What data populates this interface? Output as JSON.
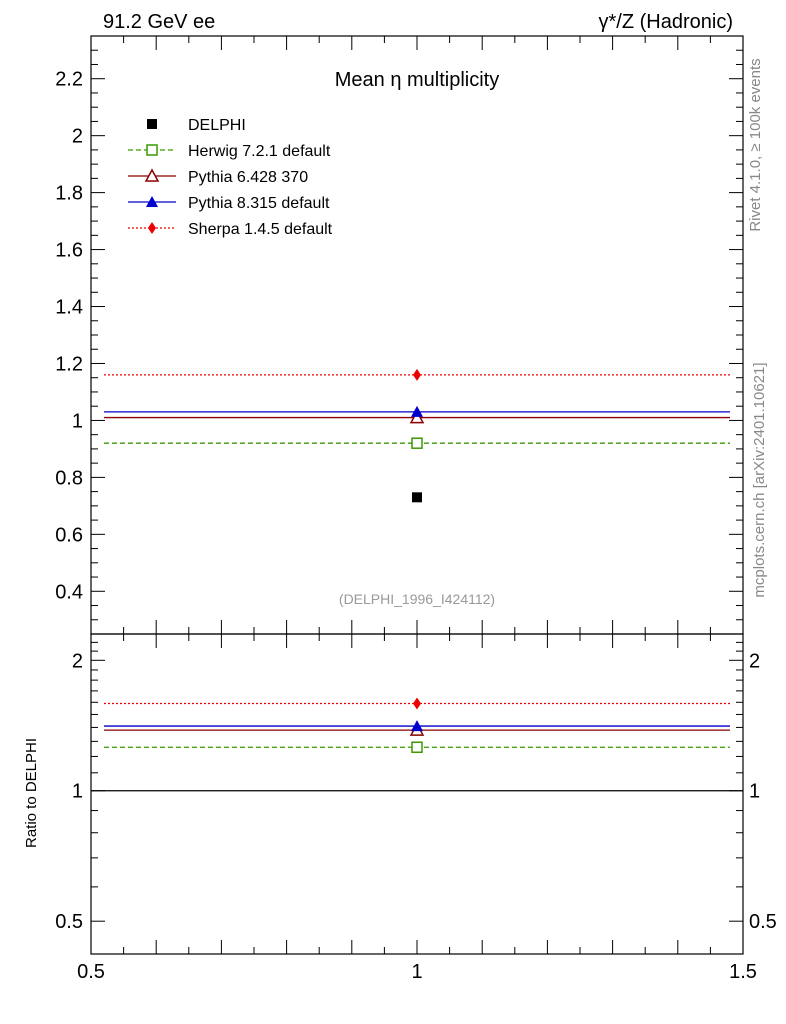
{
  "header": {
    "left": "91.2 GeV ee",
    "right": "γ*/Z (Hadronic)"
  },
  "side_labels": {
    "rivet": "Rivet 4.1.0, ≥ 100k events",
    "source": "mcplots.cern.ch [arXiv:2401.10621]"
  },
  "chart_data": [
    {
      "type": "line",
      "panel": "main",
      "title": "Mean η multiplicity",
      "analysis_label": "(DELPHI_1996_I424112)",
      "xlim": [
        0.5,
        1.5
      ],
      "ylim": [
        0.25,
        2.35
      ],
      "yticks": [
        0.4,
        0.6,
        0.8,
        1,
        1.2,
        1.4,
        1.6,
        1.8,
        2,
        2.2
      ],
      "ytick_labels": [
        "0.4",
        "0.6",
        "0.8",
        "1",
        "1.2",
        "1.4",
        "1.6",
        "1.8",
        "2",
        "2.2"
      ],
      "legend_position": "top-left",
      "data": {
        "name": "DELPHI",
        "x": 1,
        "y": 0.73,
        "color": "#000000",
        "marker": "square-filled"
      },
      "series": [
        {
          "name": "Herwig 7.2.1 default",
          "x": 1,
          "y": 0.92,
          "xrange": [
            0.5,
            1.5
          ],
          "color": "#3a9a00",
          "style": "dashed",
          "marker": "square-open"
        },
        {
          "name": "Pythia 6.428 370",
          "x": 1,
          "y": 1.01,
          "xrange": [
            0.5,
            1.5
          ],
          "color": "#8b0000",
          "style": "solid",
          "marker": "triangle-open"
        },
        {
          "name": "Pythia 8.315 default",
          "x": 1,
          "y": 1.03,
          "xrange": [
            0.5,
            1.5
          ],
          "color": "#0000cc",
          "style": "solid",
          "marker": "triangle-filled"
        },
        {
          "name": "Sherpa 1.4.5 default",
          "x": 1,
          "y": 1.16,
          "xrange": [
            0.5,
            1.5
          ],
          "color": "#ee0000",
          "style": "dotted",
          "marker": "diamond-filled"
        }
      ]
    },
    {
      "type": "line",
      "panel": "ratio",
      "ylabel": "Ratio to DELPHI",
      "xlim": [
        0.5,
        1.5
      ],
      "ylim": [
        0.42,
        2.3
      ],
      "yscale": "log",
      "yticks": [
        0.5,
        1,
        2
      ],
      "ytick_labels": [
        "0.5",
        "1",
        "2"
      ],
      "xticks": [
        0.5,
        1,
        1.5
      ],
      "xtick_labels": [
        "0.5",
        "1",
        "1.5"
      ],
      "reference": 1,
      "series": [
        {
          "name": "Herwig 7.2.1 default",
          "y": 1.26,
          "color": "#3a9a00",
          "style": "dashed",
          "marker": "square-open"
        },
        {
          "name": "Pythia 6.428 370",
          "y": 1.38,
          "color": "#8b0000",
          "style": "solid",
          "marker": "triangle-open"
        },
        {
          "name": "Pythia 8.315 default",
          "y": 1.41,
          "color": "#0000cc",
          "style": "solid",
          "marker": "triangle-filled"
        },
        {
          "name": "Sherpa 1.4.5 default",
          "y": 1.59,
          "color": "#ee0000",
          "style": "dotted",
          "marker": "diamond-filled"
        }
      ]
    }
  ]
}
